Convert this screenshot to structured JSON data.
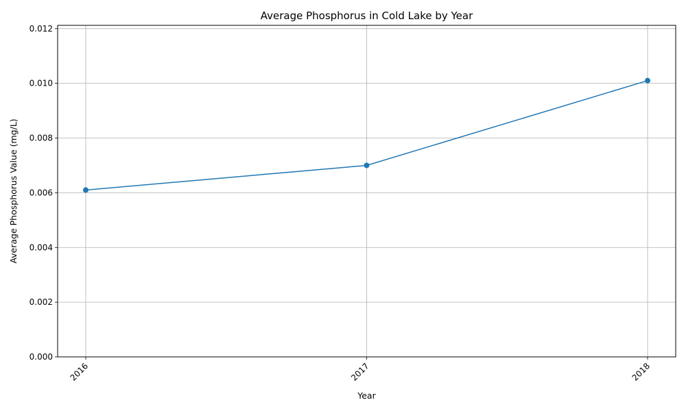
{
  "chart_data": {
    "type": "line",
    "title": "Average Phosphorus in Cold Lake by Year",
    "xlabel": "Year",
    "ylabel": "Average Phosphorus Value (mg/L)",
    "x": [
      "2016",
      "2017",
      "2018"
    ],
    "series": [
      {
        "values": [
          0.0061,
          0.007,
          0.0101
        ],
        "color": "#1f77b4",
        "marker": "circle"
      }
    ],
    "ylim": [
      0,
      0.01212
    ],
    "yticks": [
      "0.000",
      "0.002",
      "0.004",
      "0.006",
      "0.008",
      "0.010",
      "0.012"
    ],
    "grid": true,
    "legend": "none"
  }
}
